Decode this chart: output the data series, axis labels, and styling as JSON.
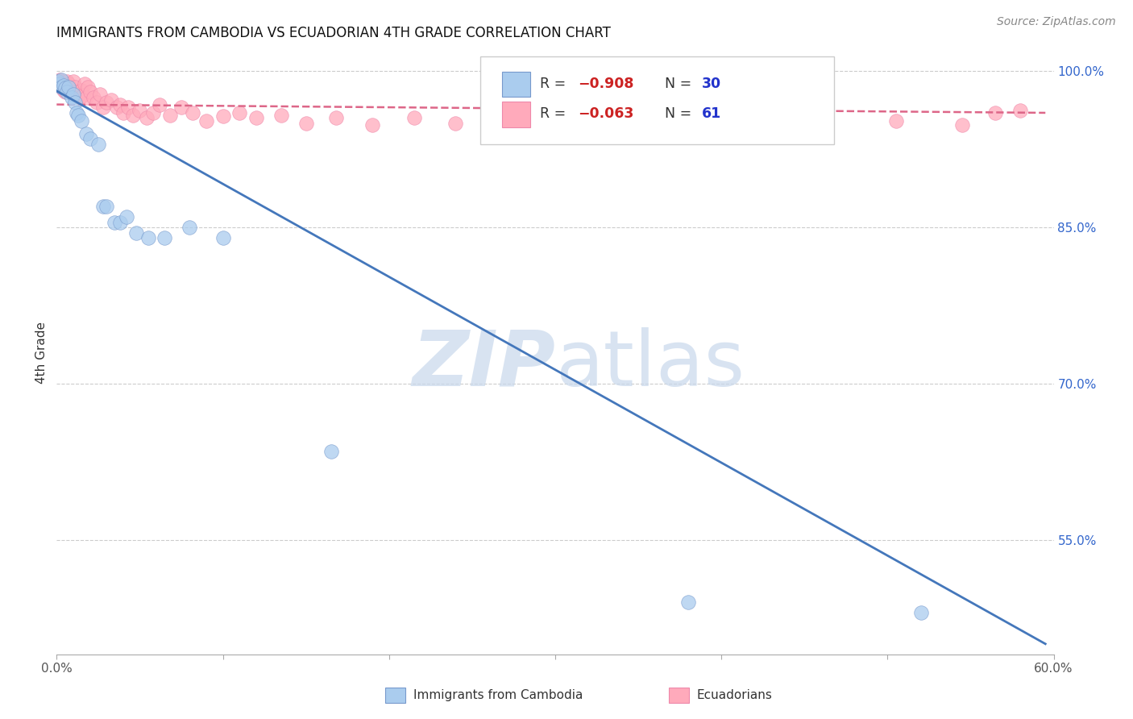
{
  "title": "IMMIGRANTS FROM CAMBODIA VS ECUADORIAN 4TH GRADE CORRELATION CHART",
  "source": "Source: ZipAtlas.com",
  "ylabel": "4th Grade",
  "xlim": [
    0.0,
    0.6
  ],
  "ylim": [
    0.44,
    1.02
  ],
  "xtick_positions": [
    0.0,
    0.1,
    0.2,
    0.3,
    0.4,
    0.5,
    0.6
  ],
  "xticklabels": [
    "0.0%",
    "",
    "",
    "",
    "",
    "",
    "60.0%"
  ],
  "yticks_right": [
    0.55,
    0.7,
    0.85,
    1.0
  ],
  "ytick_right_labels": [
    "55.0%",
    "70.0%",
    "85.0%",
    "100.0%"
  ],
  "grid_color": "#cccccc",
  "background_color": "#ffffff",
  "cambodia": {
    "label": "Immigrants from Cambodia",
    "line_color": "#4477bb",
    "dot_color": "#aaccee",
    "dot_edge_color": "#7799cc",
    "R": -0.908,
    "N": 30,
    "x": [
      0.001,
      0.002,
      0.003,
      0.003,
      0.004,
      0.005,
      0.006,
      0.007,
      0.009,
      0.01,
      0.011,
      0.012,
      0.013,
      0.015,
      0.018,
      0.02,
      0.025,
      0.028,
      0.03,
      0.035,
      0.038,
      0.042,
      0.048,
      0.055,
      0.065,
      0.08,
      0.1,
      0.165,
      0.38,
      0.52
    ],
    "y": [
      0.99,
      0.988,
      0.992,
      0.985,
      0.986,
      0.984,
      0.98,
      0.985,
      0.975,
      0.978,
      0.97,
      0.96,
      0.958,
      0.952,
      0.94,
      0.935,
      0.93,
      0.87,
      0.87,
      0.855,
      0.855,
      0.86,
      0.845,
      0.84,
      0.84,
      0.85,
      0.84,
      0.635,
      0.49,
      0.48
    ],
    "trend_x": [
      0.0,
      0.595
    ],
    "trend_y": [
      0.981,
      0.45
    ]
  },
  "ecuadorian": {
    "label": "Ecuadorians",
    "line_color": "#dd6688",
    "dot_color": "#ffaabb",
    "dot_edge_color": "#ee88aa",
    "R": -0.063,
    "N": 61,
    "x": [
      0.001,
      0.002,
      0.003,
      0.003,
      0.004,
      0.004,
      0.005,
      0.006,
      0.006,
      0.007,
      0.008,
      0.009,
      0.01,
      0.011,
      0.012,
      0.013,
      0.014,
      0.015,
      0.016,
      0.017,
      0.018,
      0.019,
      0.02,
      0.022,
      0.024,
      0.026,
      0.028,
      0.03,
      0.033,
      0.036,
      0.038,
      0.04,
      0.043,
      0.046,
      0.05,
      0.054,
      0.058,
      0.062,
      0.068,
      0.075,
      0.082,
      0.09,
      0.1,
      0.11,
      0.12,
      0.135,
      0.15,
      0.168,
      0.19,
      0.215,
      0.24,
      0.27,
      0.3,
      0.34,
      0.38,
      0.42,
      0.46,
      0.505,
      0.545,
      0.565,
      0.58
    ],
    "y": [
      0.99,
      0.992,
      0.985,
      0.99,
      0.988,
      0.982,
      0.98,
      0.99,
      0.985,
      0.988,
      0.98,
      0.982,
      0.99,
      0.985,
      0.98,
      0.978,
      0.975,
      0.982,
      0.977,
      0.988,
      0.975,
      0.985,
      0.98,
      0.975,
      0.97,
      0.978,
      0.965,
      0.97,
      0.972,
      0.965,
      0.968,
      0.96,
      0.965,
      0.958,
      0.962,
      0.955,
      0.96,
      0.968,
      0.958,
      0.965,
      0.96,
      0.952,
      0.957,
      0.96,
      0.955,
      0.958,
      0.95,
      0.955,
      0.948,
      0.955,
      0.95,
      0.96,
      0.96,
      0.952,
      0.948,
      0.958,
      0.95,
      0.952,
      0.948,
      0.96,
      0.962
    ],
    "trend_x": [
      0.0,
      0.595
    ],
    "trend_y": [
      0.968,
      0.96
    ]
  }
}
